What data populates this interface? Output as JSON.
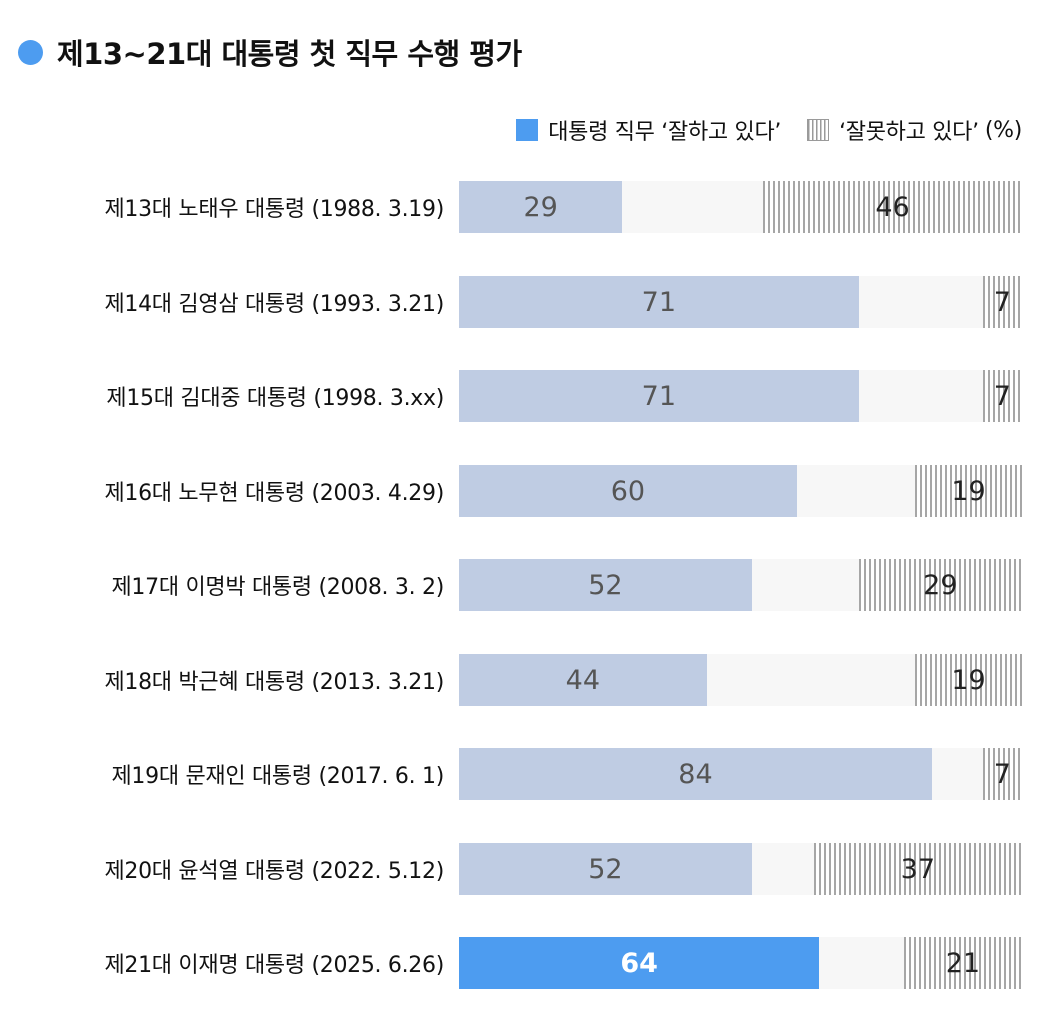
{
  "title": "제13~21대 대통령 첫 직무 수행 평가",
  "legend": {
    "positive": "대통령 직무 ‘잘하고 있다’",
    "negative": "‘잘못하고 있다’",
    "unit": "(%)"
  },
  "colors": {
    "accent": "#4d9cf0",
    "positive_bar": "#bfcce3",
    "track": "#f7f7f7",
    "hatch": "#a6a6a6"
  },
  "chart_data": {
    "type": "bar",
    "orientation": "horizontal",
    "stacked": "diverging-from-ends",
    "title": "제13~21대 대통령 첫 직무 수행 평가",
    "unit": "%",
    "xlim": [
      0,
      100
    ],
    "legend_placement": "top-right",
    "grid": false,
    "categories": [
      "제13대 노태우 대통령 (1988. 3.19)",
      "제14대 김영삼 대통령 (1993. 3.21)",
      "제15대 김대중 대통령 (1998. 3.xx)",
      "제16대 노무현 대통령 (2003. 4.29)",
      "제17대 이명박 대통령 (2008. 3. 2)",
      "제18대 박근혜 대통령 (2013. 3.21)",
      "제19대 문재인 대통령 (2017. 6. 1)",
      "제20대 윤석열 대통령 (2022. 5.12)",
      "제21대 이재명 대통령 (2025. 6.26)"
    ],
    "series": [
      {
        "name": "대통령 직무 ‘잘하고 있다’",
        "values": [
          29,
          71,
          71,
          60,
          52,
          44,
          84,
          52,
          64
        ]
      },
      {
        "name": "‘잘못하고 있다’",
        "values": [
          46,
          7,
          7,
          19,
          29,
          19,
          7,
          37,
          21
        ]
      }
    ],
    "highlight_index": 8
  }
}
